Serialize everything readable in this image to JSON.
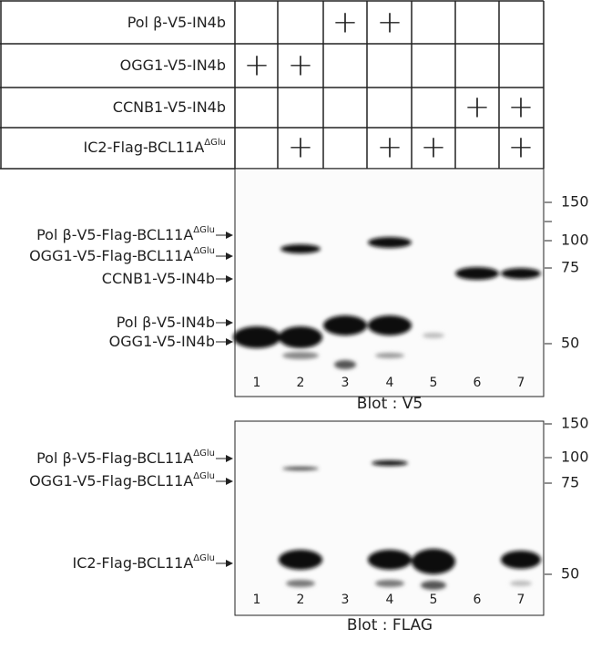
{
  "table": {
    "rows": [
      {
        "label": {
          "text": "Pol β-V5-IN4b"
        },
        "cells": [
          null,
          null,
          "+",
          "+",
          null,
          null,
          null
        ]
      },
      {
        "label": {
          "text": "OGG1-V5-IN4b"
        },
        "cells": [
          "+",
          "+",
          null,
          null,
          null,
          null,
          null
        ]
      },
      {
        "label": {
          "text": "CCNB1-V5-IN4b"
        },
        "cells": [
          null,
          null,
          null,
          null,
          null,
          "+",
          "+"
        ]
      },
      {
        "label": {
          "text": "IC2-Flag-BCL11A",
          "sup": "ΔGlu"
        },
        "cells": [
          null,
          "+",
          null,
          "+",
          "+",
          null,
          "+"
        ]
      }
    ]
  },
  "blots": [
    {
      "caption": "Blot : V5",
      "lanes": [
        1,
        2,
        3,
        4,
        5,
        6,
        7
      ],
      "markers": [
        150,
        100,
        75,
        50
      ],
      "band_labels": [
        {
          "text": "Pol β-V5-Flag-BCL11A",
          "sup": "ΔGlu"
        },
        {
          "text": "OGG1-V5-Flag-BCL11A",
          "sup": "ΔGlu"
        },
        {
          "text": "CCNB1-V5-IN4b"
        },
        {
          "text": "Pol β-V5-IN4b"
        },
        {
          "text": "OGG1-V5-IN4b"
        }
      ]
    },
    {
      "caption": "Blot : FLAG",
      "lanes": [
        1,
        2,
        3,
        4,
        5,
        6,
        7
      ],
      "markers": [
        150,
        100,
        75,
        50
      ],
      "band_labels": [
        {
          "text": "Pol β-V5-Flag-BCL11A",
          "sup": "ΔGlu"
        },
        {
          "text": "OGG1-V5-Flag-BCL11A",
          "sup": "ΔGlu"
        },
        {
          "text": "IC2-Flag-BCL11A",
          "sup": "ΔGlu"
        }
      ]
    }
  ]
}
